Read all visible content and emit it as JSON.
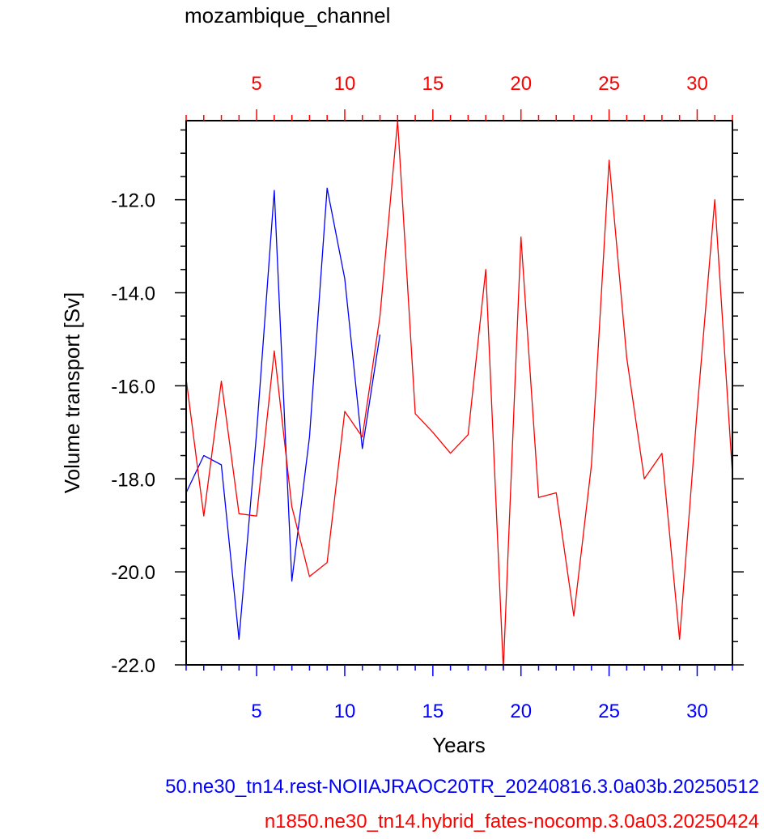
{
  "chart_data": {
    "type": "line",
    "title": "mozambique_channel",
    "xlabel": "Years",
    "ylabel": "Volume transport [Sv]",
    "xlim": [
      1,
      32
    ],
    "ylim": [
      -22.0,
      -10.3
    ],
    "x_ticks": [
      5,
      10,
      15,
      20,
      25,
      30
    ],
    "x_tick_labels": [
      "5",
      "10",
      "15",
      "20",
      "25",
      "30"
    ],
    "y_ticks": [
      -22.0,
      -20.0,
      -18.0,
      -16.0,
      -14.0,
      -12.0
    ],
    "y_tick_labels": [
      "-22.0",
      "-20.0",
      "-18.0",
      "-16.0",
      "-14.0",
      "-12.0"
    ],
    "grid": false,
    "series": [
      {
        "name": "50.ne30_tn14.rest-NOIIAJRAOC20TR_20240816.3.0a03b.20250512",
        "color": "#0000ff",
        "x": [
          1,
          2,
          3,
          4,
          5,
          6,
          7,
          8,
          9,
          10,
          11,
          12
        ],
        "values": [
          -18.3,
          -17.5,
          -17.7,
          -21.45,
          -17.0,
          -11.8,
          -20.2,
          -17.1,
          -11.75,
          -13.7,
          -17.35,
          -14.9
        ]
      },
      {
        "name": "n1850.ne30_tn14.hybrid_fates-nocomp.3.0a03.20250424",
        "color": "#ff0000",
        "x": [
          1,
          2,
          3,
          4,
          5,
          6,
          7,
          8,
          9,
          10,
          11,
          12,
          13,
          14,
          15,
          16,
          17,
          18,
          19,
          20,
          21,
          22,
          23,
          24,
          25,
          26,
          27,
          28,
          29,
          30,
          31,
          32
        ],
        "values": [
          -15.85,
          -18.8,
          -15.9,
          -18.75,
          -18.8,
          -15.25,
          -18.6,
          -20.1,
          -19.8,
          -16.55,
          -17.1,
          -14.5,
          -10.3,
          -16.6,
          -17.0,
          -17.45,
          -17.05,
          -13.5,
          -22.1,
          -12.8,
          -18.4,
          -18.3,
          -20.95,
          -17.7,
          -11.15,
          -15.4,
          -18.0,
          -17.45,
          -21.45,
          -16.5,
          -12.0,
          -17.9
        ]
      }
    ],
    "footer_labels": [
      {
        "text": "50.ne30_tn14.rest-NOIIAJRAOC20TR_20240816.3.0a03b.20250512",
        "color": "#0000ff"
      },
      {
        "text": "n1850.ne30_tn14.hybrid_fates-nocomp.3.0a03.20250424",
        "color": "#ff0000"
      }
    ]
  }
}
